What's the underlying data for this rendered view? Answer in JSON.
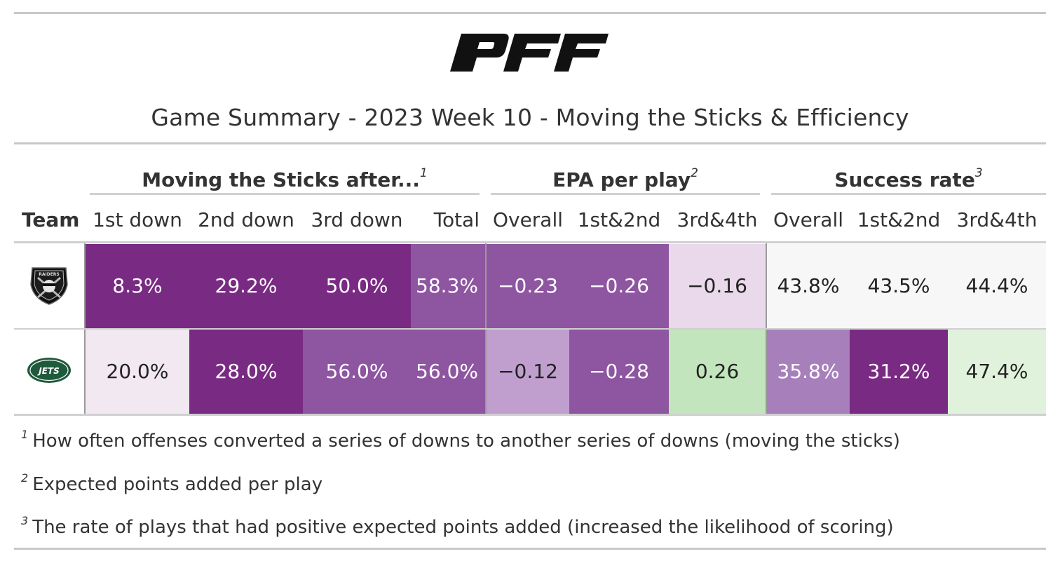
{
  "brand": {
    "logo_text": "PFF"
  },
  "title": "Game Summary - 2023 Week 10 - Moving the Sticks & Efficiency",
  "spanners": [
    {
      "label": "Moving the Sticks after...",
      "footnote_mark": "1"
    },
    {
      "label": "EPA per play",
      "footnote_mark": "2"
    },
    {
      "label": "Success rate",
      "footnote_mark": "3"
    }
  ],
  "chart_data": {
    "type": "table",
    "columns": [
      "Team",
      "1st down",
      "2nd down",
      "3rd down",
      "Total",
      "Overall",
      "1st&2nd",
      "3rd&4th",
      "Overall",
      "1st&2nd",
      "3rd&4th"
    ],
    "rows": [
      {
        "team": "Raiders",
        "team_logo_text": "RAIDERS",
        "values": [
          "8.3%",
          "29.2%",
          "50.0%",
          "58.3%",
          "−0.23",
          "−0.26",
          "−0.16",
          "43.8%",
          "43.5%",
          "44.4%"
        ],
        "colors": [
          "#792a82",
          "#792a82",
          "#792a82",
          "#8e55a0",
          "#8e55a0",
          "#8e55a0",
          "#e9d9ea",
          "#f7f7f7",
          "#f7f7f7",
          "#f7f7f7"
        ],
        "text_colors": [
          "#ffffff",
          "#ffffff",
          "#ffffff",
          "#ffffff",
          "#ffffff",
          "#ffffff",
          "#222222",
          "#222222",
          "#222222",
          "#222222"
        ]
      },
      {
        "team": "Jets",
        "team_logo_text": "JETS",
        "values": [
          "20.0%",
          "28.0%",
          "56.0%",
          "56.0%",
          "−0.12",
          "−0.28",
          "0.26",
          "35.8%",
          "31.2%",
          "47.4%"
        ],
        "colors": [
          "#f1e8f1",
          "#792a82",
          "#8e55a0",
          "#8e55a0",
          "#c09fcf",
          "#8e55a0",
          "#c3e5bd",
          "#a780bb",
          "#792a82",
          "#e1f2dc"
        ],
        "text_colors": [
          "#222222",
          "#ffffff",
          "#ffffff",
          "#ffffff",
          "#222222",
          "#ffffff",
          "#222222",
          "#ffffff",
          "#ffffff",
          "#222222"
        ]
      }
    ]
  },
  "footnotes": [
    {
      "mark": "1",
      "text": "How often offenses converted a series of downs to another series of downs (moving the sticks)"
    },
    {
      "mark": "2",
      "text": "Expected points added per play"
    },
    {
      "mark": "3",
      "text": "The rate of plays that had positive expected points added (increased the likelihood of scoring)"
    }
  ]
}
